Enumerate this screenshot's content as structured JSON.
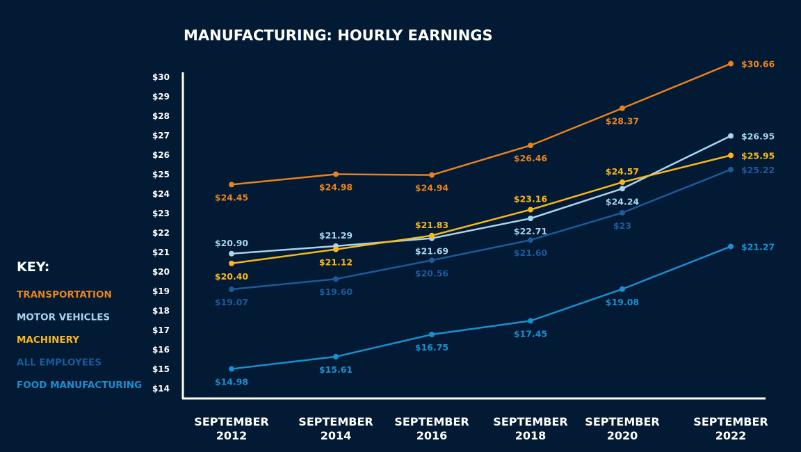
{
  "chart_data": {
    "type": "line",
    "title": "MANUFACTURING: HOURLY EARNINGS",
    "xlabel": "",
    "ylabel": "",
    "ylim": [
      14,
      30
    ],
    "yticks": [
      "$14",
      "$15",
      "$16",
      "$17",
      "$18",
      "$19",
      "$20",
      "$21",
      "$22",
      "$23",
      "$24",
      "$25",
      "$26",
      "$27",
      "$28",
      "$29",
      "$30"
    ],
    "categories": [
      [
        "SEPTEMBER",
        "2012"
      ],
      [
        "SEPTEMBER",
        "2014"
      ],
      [
        "SEPTEMBER",
        "2016"
      ],
      [
        "SEPTEMBER",
        "2018"
      ],
      [
        "SEPTEMBER",
        "2020"
      ],
      [
        "SEPTEMBER",
        "2022"
      ]
    ],
    "legend_title": "KEY:",
    "legend_position": "left",
    "grid": false,
    "series": [
      {
        "name": "TRANSPORTATION",
        "color": "#e8821e",
        "values": [
          24.45,
          24.98,
          24.94,
          26.46,
          28.37,
          30.66
        ],
        "labels": [
          "$24.45",
          "$24.98",
          "$24.94",
          "$26.46",
          "$28.37",
          "$30.66"
        ]
      },
      {
        "name": "MOTOR VEHICLES",
        "color": "#a9d4f0",
        "values": [
          20.9,
          21.29,
          21.69,
          22.71,
          24.24,
          26.95
        ],
        "labels": [
          "$20.90",
          "$21.29",
          "$21.69",
          "$22.71",
          "$24.24",
          "$26.95"
        ]
      },
      {
        "name": "MACHINERY",
        "color": "#f7b71d",
        "values": [
          20.4,
          21.12,
          21.83,
          23.16,
          24.57,
          25.95
        ],
        "labels": [
          "$20.40",
          "$21.12",
          "$21.83",
          "$23.16",
          "$24.57",
          "$25.95"
        ]
      },
      {
        "name": "ALL EMPLOYEES",
        "color": "#1c5a9a",
        "values": [
          19.07,
          19.6,
          20.56,
          21.6,
          23,
          25.22
        ],
        "labels": [
          "$19.07",
          "$19.60",
          "$20.56",
          "$21.60",
          "$23",
          "$25.22"
        ]
      },
      {
        "name": "FOOD MANUFACTURING",
        "color": "#1a8fd0",
        "values": [
          14.98,
          15.61,
          16.75,
          17.45,
          19.08,
          21.27
        ],
        "labels": [
          "$14.98",
          "$15.61",
          "$16.75",
          "$17.45",
          "$19.08",
          "$21.27"
        ]
      }
    ]
  }
}
